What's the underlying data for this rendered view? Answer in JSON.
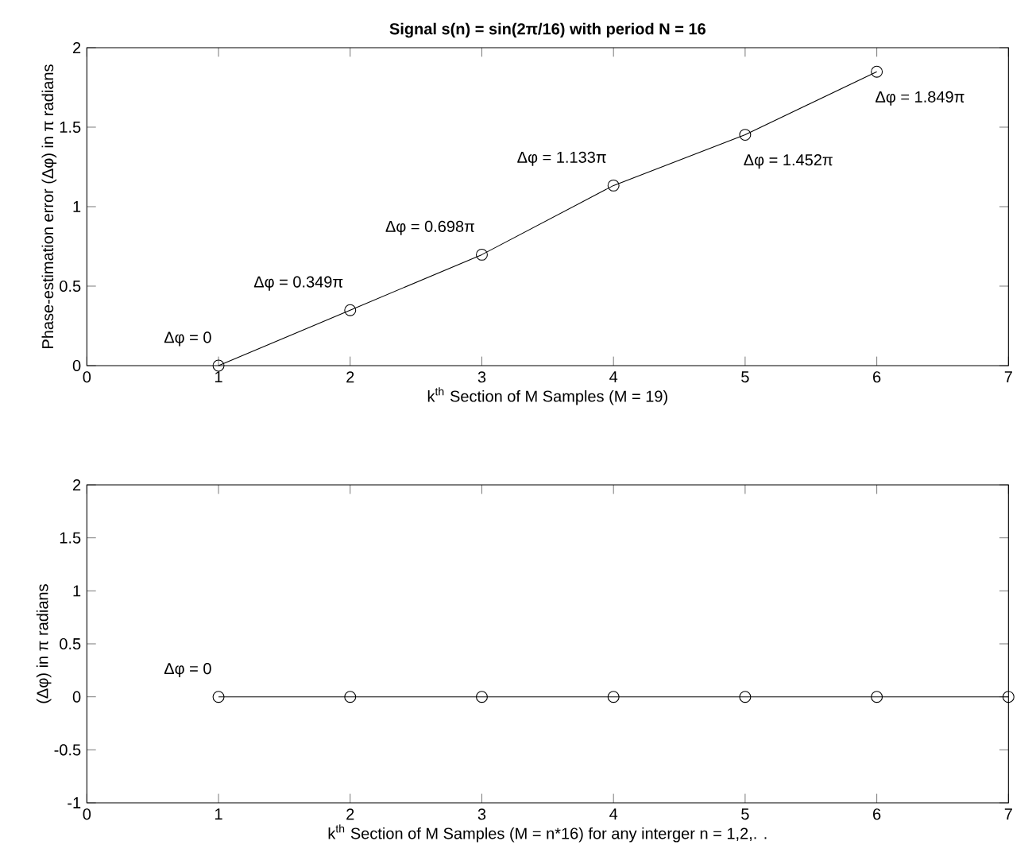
{
  "chart_data": [
    {
      "type": "line",
      "title": "Signal s(n) = sin(2π/16) with period N = 16",
      "xlabel": "k$^{th}$ Section of M Samples (M = 19)",
      "ylabel": "Phase-estimation error (Δφ) in π radians",
      "x": [
        1,
        2,
        3,
        4,
        5,
        6
      ],
      "values": [
        0,
        0.349,
        0.698,
        1.133,
        1.452,
        1.849
      ],
      "color": "#000000",
      "marker": "circle",
      "line_style": "solid",
      "xlim": [
        0,
        7
      ],
      "ylim": [
        0,
        2
      ],
      "xticks": [
        0,
        1,
        2,
        3,
        4,
        5,
        6,
        7
      ],
      "yticks": [
        0,
        0.5,
        1,
        1.5,
        2
      ],
      "grid": false,
      "annotations": [
        {
          "text": "Δφ = 0",
          "x": 1,
          "y": 0
        },
        {
          "text": "Δφ = 0.349π",
          "x": 2,
          "y": 0.349
        },
        {
          "text": "Δφ = 0.698π",
          "x": 3,
          "y": 0.698
        },
        {
          "text": "Δφ = 1.133π",
          "x": 4,
          "y": 1.133
        },
        {
          "text": "Δφ = 1.452π",
          "x": 5,
          "y": 1.452
        },
        {
          "text": "Δφ = 1.849π",
          "x": 6,
          "y": 1.849
        }
      ]
    },
    {
      "type": "line",
      "xlabel": "k$^{th}$ Section of M Samples (M = n*16) for any interger n = 1,2,. .",
      "ylabel": "(Δφ) in π radians",
      "x": [
        1,
        2,
        3,
        4,
        5,
        6,
        7
      ],
      "values": [
        0,
        0,
        0,
        0,
        0,
        0,
        0
      ],
      "color": "#000000",
      "marker": "circle",
      "line_style": "solid",
      "xlim": [
        0,
        7
      ],
      "ylim": [
        -1,
        2
      ],
      "xticks": [
        0,
        1,
        2,
        3,
        4,
        5,
        6,
        7
      ],
      "yticks": [
        -1,
        -0.5,
        0,
        0.5,
        1,
        1.5,
        2
      ],
      "grid": false,
      "annotations": [
        {
          "text": "Δφ = 0",
          "x": 1,
          "y": 0
        }
      ]
    }
  ]
}
